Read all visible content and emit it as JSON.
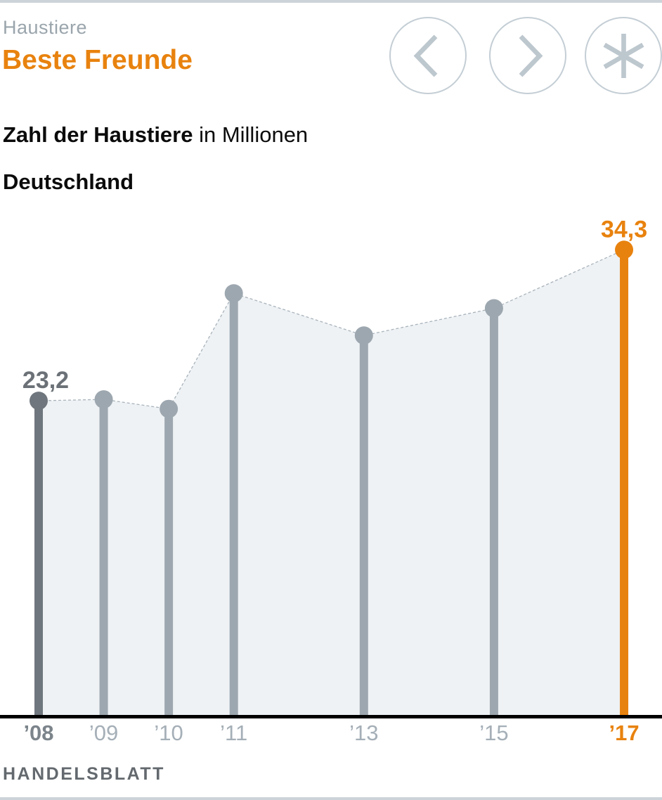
{
  "header": {
    "kicker": "Haustiere",
    "title": "Beste Freunde",
    "subtitle_bold": "Zahl der Haustiere",
    "subtitle_rest": " in Millionen",
    "region": "Deutschland"
  },
  "nav": {
    "prev_icon": "chevron-left",
    "next_icon": "chevron-right",
    "related_icon": "asterisk"
  },
  "footer": {
    "source": "HANDELSBLATT"
  },
  "colors": {
    "accent_orange": "#E8820E",
    "bar_dark_gray": "#6F767D",
    "bar_light_gray": "#9DA7AF",
    "area_fill": "#EEF2F5",
    "dashed_line": "#A9B3BB",
    "axis_black": "#000000",
    "tick_dark": "#7C848B",
    "tick_light": "#A5AFB7",
    "value_label_gray": "#6B7177",
    "kicker_gray": "#9AA5AC",
    "nav_circle_stroke": "#C4CED5",
    "nav_glyph": "#BDC7CE",
    "border_hairline": "#CDD4D9",
    "source_gray": "#63696E"
  },
  "chart_data": {
    "type": "lollipop-area",
    "title": "Zahl der Haustiere in Millionen",
    "region": "Deutschland",
    "unit": "Millionen Haustiere",
    "x": [
      2008,
      2009,
      2010,
      2011,
      2013,
      2015,
      2017
    ],
    "tick_labels": [
      "’08",
      "’09",
      "’10",
      "’11",
      "’13",
      "’15",
      "’17"
    ],
    "values": [
      23.2,
      23.3,
      22.6,
      31.1,
      28.0,
      30.0,
      34.3
    ],
    "ylim": [
      0,
      36
    ],
    "x_axis_linear_years": true,
    "grid": false,
    "legend": "none",
    "highlight_year": 2017,
    "first_point_emphasis_year": 2008,
    "annotated_points": [
      {
        "year": 2008,
        "label": "23,2"
      },
      {
        "year": 2017,
        "label": "34,3"
      }
    ]
  }
}
